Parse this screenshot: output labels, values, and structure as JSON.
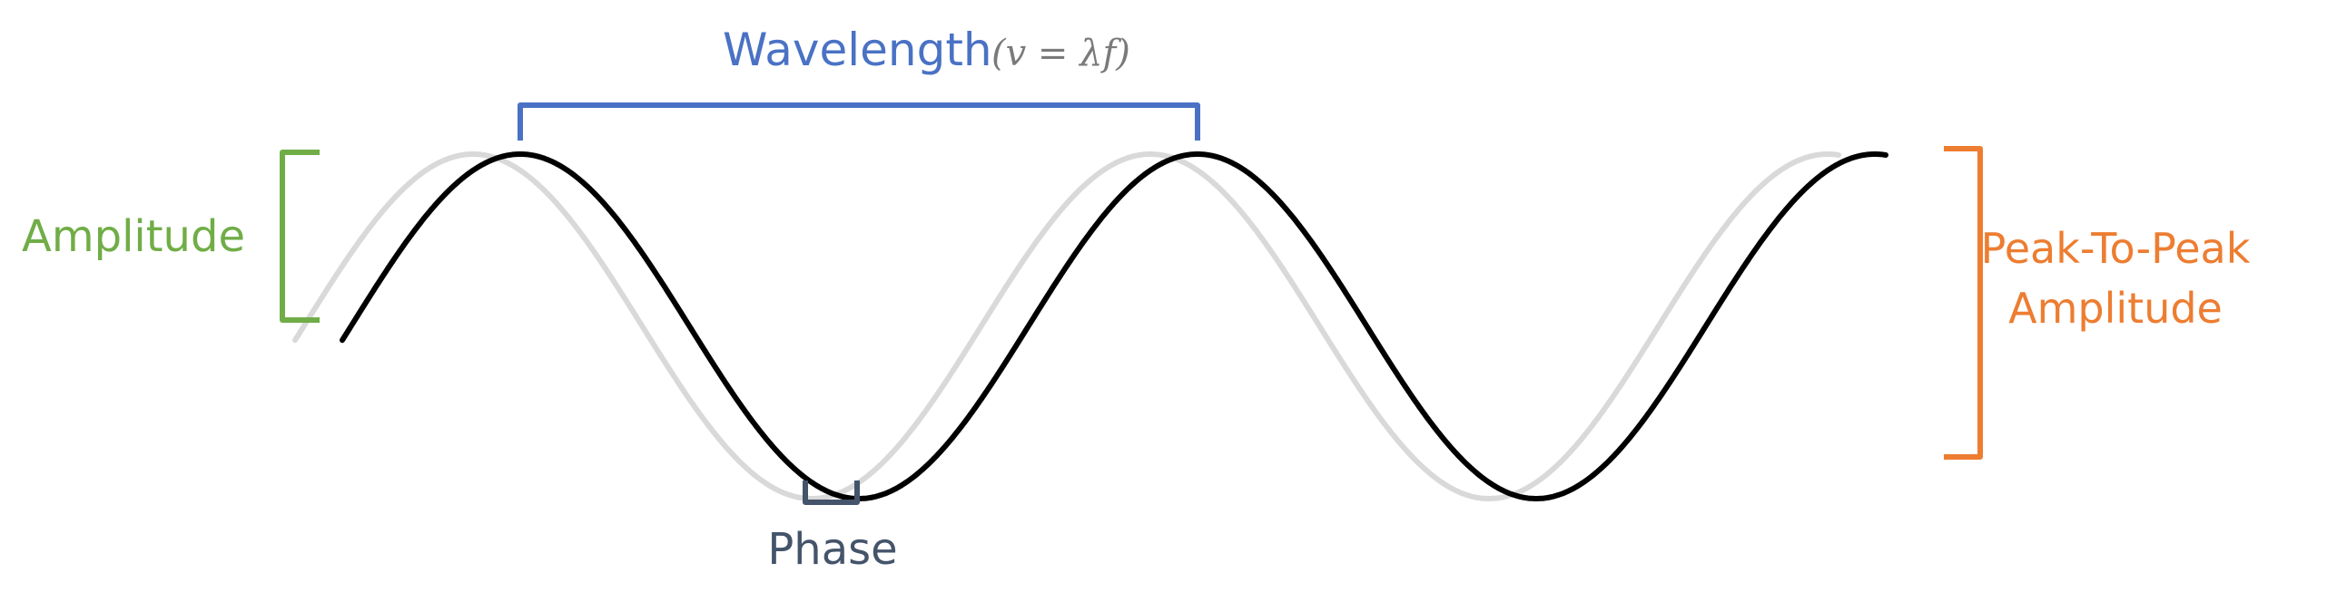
{
  "labels": {
    "wavelength": "Wavelength",
    "wavelength_formula": "(v = λf)",
    "amplitude": "Amplitude",
    "phase": "Phase",
    "peak_to_peak_line1": "Peak-To-Peak",
    "peak_to_peak_line2": "Amplitude"
  },
  "colors": {
    "wavelength": "#4a72c4",
    "formula": "#7a7a7a",
    "amplitude": "#70ad47",
    "phase": "#44546a",
    "peak_to_peak": "#ed7d31",
    "main_wave": "#000000",
    "phase_shifted_wave": "#d9d9d9"
  }
}
